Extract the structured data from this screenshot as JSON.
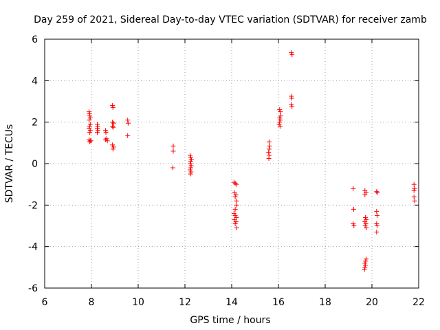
{
  "chart_data": {
    "type": "scatter",
    "title": "Day 259 of 2021, Sidereal Day-to-day VTEC variation (SDTVAR) for receiver zamb",
    "xlabel": "GPS time / hours",
    "ylabel": "SDTVAR / TECUs",
    "xlim": [
      6,
      22
    ],
    "ylim": [
      -6,
      6
    ],
    "xticks": [
      6,
      8,
      10,
      12,
      14,
      16,
      18,
      20,
      22
    ],
    "yticks": [
      -6,
      -4,
      -2,
      0,
      2,
      4,
      6
    ],
    "xtick_labels": [
      "6",
      "8",
      "10",
      "12",
      "14",
      "16",
      "18",
      "20",
      "22"
    ],
    "ytick_labels": [
      "-6",
      "-4",
      "-2",
      "0",
      "2",
      "4",
      "6"
    ],
    "grid": true,
    "marker": "plus",
    "color": "#ff0000",
    "series": [
      {
        "name": "SDTVAR",
        "points": [
          [
            7.9,
            2.5
          ],
          [
            7.92,
            2.4
          ],
          [
            7.93,
            2.3
          ],
          [
            7.95,
            2.2
          ],
          [
            7.9,
            2.1
          ],
          [
            7.95,
            1.9
          ],
          [
            7.92,
            1.8
          ],
          [
            7.9,
            1.7
          ],
          [
            7.95,
            1.6
          ],
          [
            7.93,
            1.5
          ],
          [
            7.9,
            1.15
          ],
          [
            7.95,
            1.1
          ],
          [
            7.98,
            1.1
          ],
          [
            7.92,
            1.05
          ],
          [
            8.25,
            1.9
          ],
          [
            8.27,
            1.8
          ],
          [
            8.25,
            1.7
          ],
          [
            8.28,
            1.6
          ],
          [
            8.25,
            1.5
          ],
          [
            8.6,
            1.6
          ],
          [
            8.62,
            1.5
          ],
          [
            8.65,
            1.2
          ],
          [
            8.6,
            1.15
          ],
          [
            8.68,
            1.1
          ],
          [
            8.9,
            2.8
          ],
          [
            8.92,
            2.7
          ],
          [
            8.9,
            2.0
          ],
          [
            8.95,
            1.95
          ],
          [
            8.9,
            1.8
          ],
          [
            8.93,
            1.75
          ],
          [
            8.9,
            0.9
          ],
          [
            8.95,
            0.8
          ],
          [
            8.92,
            0.7
          ],
          [
            9.55,
            2.1
          ],
          [
            9.57,
            1.95
          ],
          [
            9.55,
            1.35
          ],
          [
            11.5,
            0.85
          ],
          [
            11.5,
            0.6
          ],
          [
            11.48,
            -0.2
          ],
          [
            12.22,
            0.4
          ],
          [
            12.25,
            0.3
          ],
          [
            12.28,
            0.2
          ],
          [
            12.25,
            0.1
          ],
          [
            12.23,
            0.0
          ],
          [
            12.27,
            -0.1
          ],
          [
            12.25,
            -0.2
          ],
          [
            12.22,
            -0.3
          ],
          [
            12.26,
            -0.4
          ],
          [
            12.24,
            -0.5
          ],
          [
            14.1,
            -0.9
          ],
          [
            14.15,
            -0.95
          ],
          [
            14.2,
            -1.0
          ],
          [
            14.12,
            -1.4
          ],
          [
            14.18,
            -1.5
          ],
          [
            14.15,
            -1.6
          ],
          [
            14.2,
            -1.8
          ],
          [
            14.2,
            -2.0
          ],
          [
            14.15,
            -2.2
          ],
          [
            14.1,
            -2.4
          ],
          [
            14.15,
            -2.5
          ],
          [
            14.2,
            -2.6
          ],
          [
            14.12,
            -2.7
          ],
          [
            14.18,
            -2.8
          ],
          [
            14.15,
            -2.9
          ],
          [
            14.22,
            -3.1
          ],
          [
            15.6,
            1.05
          ],
          [
            15.62,
            0.85
          ],
          [
            15.6,
            0.7
          ],
          [
            15.58,
            0.55
          ],
          [
            15.6,
            0.4
          ],
          [
            15.59,
            0.25
          ],
          [
            16.05,
            2.6
          ],
          [
            16.08,
            2.5
          ],
          [
            16.1,
            2.3
          ],
          [
            16.05,
            2.2
          ],
          [
            16.08,
            2.1
          ],
          [
            16.05,
            2.0
          ],
          [
            16.03,
            1.9
          ],
          [
            16.07,
            1.8
          ],
          [
            16.55,
            5.35
          ],
          [
            16.58,
            5.25
          ],
          [
            16.55,
            3.25
          ],
          [
            16.57,
            3.15
          ],
          [
            16.55,
            2.85
          ],
          [
            16.58,
            2.75
          ],
          [
            19.2,
            -1.2
          ],
          [
            19.22,
            -2.2
          ],
          [
            19.2,
            -2.9
          ],
          [
            19.23,
            -3.0
          ],
          [
            19.7,
            -1.3
          ],
          [
            19.75,
            -1.4
          ],
          [
            19.7,
            -1.5
          ],
          [
            19.72,
            -2.6
          ],
          [
            19.75,
            -2.7
          ],
          [
            19.7,
            -2.8
          ],
          [
            19.74,
            -2.9
          ],
          [
            19.71,
            -3.0
          ],
          [
            19.76,
            -3.1
          ],
          [
            19.75,
            -4.6
          ],
          [
            19.73,
            -4.7
          ],
          [
            19.7,
            -4.8
          ],
          [
            19.72,
            -4.9
          ],
          [
            19.7,
            -5.0
          ],
          [
            19.68,
            -5.1
          ],
          [
            20.2,
            -1.35
          ],
          [
            20.23,
            -1.4
          ],
          [
            20.2,
            -2.3
          ],
          [
            20.22,
            -2.5
          ],
          [
            20.2,
            -2.9
          ],
          [
            20.22,
            -3.0
          ],
          [
            20.2,
            -3.3
          ],
          [
            21.8,
            -1.0
          ],
          [
            21.82,
            -1.2
          ],
          [
            21.8,
            -1.3
          ],
          [
            21.8,
            -1.6
          ],
          [
            21.83,
            -1.8
          ]
        ]
      }
    ]
  }
}
